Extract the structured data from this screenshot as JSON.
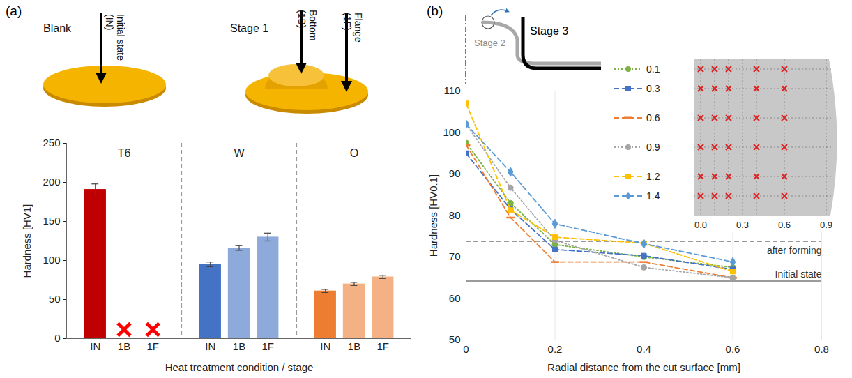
{
  "chart_data": [
    {
      "type": "bar",
      "panel_label": "(a)",
      "schematic": {
        "labels": [
          "Blank",
          "Stage 1",
          "Initial state (IN)",
          "Bottom (1B)",
          "Flange (1F)"
        ]
      },
      "groups": [
        {
          "name": "T6",
          "categories": [
            "IN",
            "1B",
            "1F"
          ],
          "values": [
            191,
            null,
            null
          ],
          "errors": [
            7,
            null,
            null
          ],
          "colors": [
            "#c00000",
            "#ff0000",
            "#ff0000"
          ]
        },
        {
          "name": "W",
          "categories": [
            "IN",
            "1B",
            "1F"
          ],
          "values": [
            95,
            116,
            130
          ],
          "errors": [
            3,
            3,
            5
          ],
          "colors": [
            "#4472c4",
            "#8eaadb",
            "#8eaadb"
          ]
        },
        {
          "name": "O",
          "categories": [
            "IN",
            "1B",
            "1F"
          ],
          "values": [
            61,
            70,
            79
          ],
          "errors": [
            2,
            2,
            2
          ],
          "colors": [
            "#ed7d31",
            "#f4b183",
            "#f4b183"
          ]
        }
      ],
      "marker": "x",
      "xlabel": "Heat treatment condition / stage",
      "ylabel": "Hardness [HV1]",
      "ylim": [
        0,
        250
      ],
      "yticks": [
        0,
        50,
        100,
        150,
        200,
        250
      ]
    },
    {
      "type": "line",
      "panel_label": "(b)",
      "schematic": {
        "labels": [
          "Stage 2",
          "Stage 3"
        ]
      },
      "x": [
        0,
        0.1,
        0.2,
        0.4,
        0.6
      ],
      "series": [
        {
          "name": "0.1",
          "color": "#7cb342",
          "marker": "circle",
          "line_style": "dotted",
          "values": [
            97.5,
            83,
            73,
            70,
            67.5
          ]
        },
        {
          "name": "0.3",
          "color": "#4472c4",
          "marker": "square",
          "line_style": "dashed",
          "values": [
            95,
            81.5,
            71.8,
            70.3,
            67
          ]
        },
        {
          "name": "0.6",
          "color": "#ed7d31",
          "marker": "dash",
          "line_style": "dashed",
          "values": [
            97,
            79.5,
            68.8,
            68.8,
            65
          ]
        },
        {
          "name": "0.9",
          "color": "#a5a5a5",
          "marker": "circle",
          "line_style": "dotted",
          "values": [
            102,
            86.7,
            74,
            67.5,
            65
          ]
        },
        {
          "name": "1.2",
          "color": "#ffc000",
          "marker": "square",
          "line_style": "dashed",
          "values": [
            107,
            81.3,
            74.8,
            73.3,
            66.5
          ]
        },
        {
          "name": "1.4",
          "color": "#5b9bd5",
          "marker": "diamond",
          "line_style": "dashed",
          "values": [
            102,
            90.5,
            78,
            73.2,
            68.8
          ]
        }
      ],
      "reference_lines": [
        {
          "value": 73.8,
          "label": "after forming",
          "line_style": "dashed"
        },
        {
          "value": 64.2,
          "label": "Initial state",
          "line_style": "solid"
        }
      ],
      "inset": {
        "xticks": [
          {
            "value": 0,
            "label": "0.0"
          },
          {
            "value": 0.3,
            "label": "0.3"
          },
          {
            "value": 0.6,
            "label": "0.6"
          },
          {
            "value": 0.9,
            "label": "0.9"
          }
        ]
      },
      "xlabel": "Radial distance from the cut surface [mm]",
      "ylabel": "Hardness [HV0.1]",
      "xlim": [
        0,
        0.8
      ],
      "xticks": [
        0,
        0.2,
        0.4,
        0.6,
        0.8
      ],
      "ylim": [
        50,
        110
      ],
      "yticks": [
        50,
        60,
        70,
        80,
        90,
        100,
        110
      ],
      "grid": "x",
      "legend": "top-right"
    }
  ]
}
